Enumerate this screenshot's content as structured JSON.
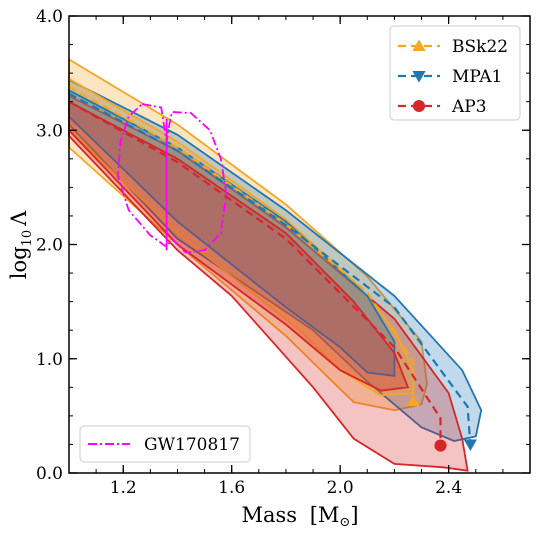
{
  "chart_data": {
    "type": "area",
    "title": "",
    "xlabel": "Mass",
    "xlabel_unit": "[M",
    "xlabel_unit_symbol": "⊙",
    "xlabel_unit_close": "]",
    "ylabel_main": "log",
    "ylabel_sub": "10",
    "ylabel_sym": "Λ",
    "xlim": [
      1.0,
      2.7
    ],
    "ylim": [
      0.0,
      4.0
    ],
    "xticks": [
      1.2,
      1.6,
      2.0,
      2.4
    ],
    "xtick_labels": [
      "1.2",
      "1.6",
      "2.0",
      "2.4"
    ],
    "yticks": [
      0.0,
      1.0,
      2.0,
      3.0,
      4.0
    ],
    "ytick_labels": [
      "0.0",
      "1.0",
      "2.0",
      "3.0",
      "4.0"
    ],
    "legend_upper": {
      "placement": "top-right",
      "entries": [
        "BSk22",
        "MPA1",
        "AP3"
      ]
    },
    "legend_lower": {
      "placement": "bottom-left",
      "entries": [
        "GW170817"
      ]
    },
    "series": [
      {
        "name": "BSk22",
        "color": "#f5a623",
        "marker": "triangle-up",
        "center_line": [
          [
            1.0,
            3.38
          ],
          [
            1.4,
            2.85
          ],
          [
            1.8,
            2.18
          ],
          [
            2.1,
            1.58
          ],
          [
            2.27,
            0.98
          ]
        ],
        "endpoint": [
          2.27,
          0.63
        ],
        "outer_region": [
          [
            1.0,
            3.62
          ],
          [
            1.4,
            3.05
          ],
          [
            1.8,
            2.35
          ],
          [
            2.1,
            1.72
          ],
          [
            2.3,
            1.15
          ],
          [
            2.32,
            0.78
          ],
          [
            2.3,
            0.6
          ],
          [
            2.2,
            0.55
          ],
          [
            2.05,
            0.62
          ],
          [
            1.95,
            0.85
          ],
          [
            1.8,
            1.2
          ],
          [
            1.4,
            2.0
          ],
          [
            1.0,
            2.85
          ]
        ],
        "inner_region": [
          [
            1.0,
            3.45
          ],
          [
            1.4,
            2.9
          ],
          [
            1.8,
            2.22
          ],
          [
            2.05,
            1.68
          ],
          [
            2.2,
            1.25
          ],
          [
            2.27,
            0.9
          ],
          [
            2.27,
            0.7
          ],
          [
            2.15,
            0.68
          ],
          [
            2.0,
            0.9
          ],
          [
            1.85,
            1.25
          ],
          [
            1.4,
            2.1
          ],
          [
            1.0,
            3.0
          ]
        ]
      },
      {
        "name": "MPA1",
        "color": "#1f77b4",
        "marker": "triangle-down",
        "center_line": [
          [
            1.0,
            3.32
          ],
          [
            1.4,
            2.82
          ],
          [
            1.8,
            2.17
          ],
          [
            2.2,
            1.45
          ],
          [
            2.47,
            0.58
          ]
        ],
        "endpoint": [
          2.48,
          0.25
        ],
        "outer_region": [
          [
            1.0,
            3.44
          ],
          [
            1.4,
            2.96
          ],
          [
            1.8,
            2.3
          ],
          [
            2.2,
            1.55
          ],
          [
            2.45,
            0.9
          ],
          [
            2.52,
            0.55
          ],
          [
            2.5,
            0.32
          ],
          [
            2.42,
            0.28
          ],
          [
            2.3,
            0.4
          ],
          [
            2.1,
            0.8
          ],
          [
            1.9,
            1.25
          ],
          [
            1.4,
            2.05
          ],
          [
            1.0,
            3.05
          ]
        ],
        "inner_region": [
          [
            1.0,
            3.35
          ],
          [
            1.4,
            2.85
          ],
          [
            1.8,
            2.2
          ],
          [
            2.1,
            1.55
          ],
          [
            2.2,
            1.15
          ],
          [
            2.2,
            0.85
          ],
          [
            2.1,
            0.88
          ],
          [
            2.0,
            1.1
          ],
          [
            1.8,
            1.45
          ],
          [
            1.4,
            2.2
          ],
          [
            1.0,
            3.12
          ]
        ]
      },
      {
        "name": "AP3",
        "color": "#d62728",
        "marker": "circle",
        "center_line": [
          [
            1.0,
            3.25
          ],
          [
            1.4,
            2.72
          ],
          [
            1.8,
            2.05
          ],
          [
            2.2,
            1.1
          ],
          [
            2.37,
            0.48
          ]
        ],
        "endpoint": [
          2.37,
          0.24
        ],
        "outer_region": [
          [
            1.0,
            3.3
          ],
          [
            1.4,
            2.82
          ],
          [
            1.8,
            2.15
          ],
          [
            2.2,
            1.35
          ],
          [
            2.4,
            0.7
          ],
          [
            2.45,
            0.3
          ],
          [
            2.47,
            0.02
          ],
          [
            2.38,
            0.05
          ],
          [
            2.2,
            0.08
          ],
          [
            2.05,
            0.3
          ],
          [
            1.9,
            0.75
          ],
          [
            1.6,
            1.55
          ],
          [
            1.4,
            1.95
          ],
          [
            1.0,
            2.95
          ]
        ],
        "inner_region": [
          [
            1.0,
            3.25
          ],
          [
            1.4,
            2.75
          ],
          [
            1.8,
            2.1
          ],
          [
            2.05,
            1.5
          ],
          [
            2.2,
            1.05
          ],
          [
            2.25,
            0.75
          ],
          [
            2.15,
            0.72
          ],
          [
            2.0,
            0.9
          ],
          [
            1.8,
            1.3
          ],
          [
            1.4,
            2.0
          ],
          [
            1.0,
            3.0
          ]
        ]
      }
    ],
    "gw170817": {
      "name": "GW170817",
      "color": "#ff00ff",
      "outer_contour": [
        [
          1.27,
          3.23
        ],
        [
          1.34,
          3.2
        ],
        [
          1.36,
          2.9
        ],
        [
          1.37,
          3.05
        ],
        [
          1.38,
          3.16
        ],
        [
          1.45,
          3.15
        ],
        [
          1.52,
          3.0
        ],
        [
          1.56,
          2.75
        ],
        [
          1.58,
          2.45
        ],
        [
          1.56,
          2.1
        ],
        [
          1.5,
          1.95
        ],
        [
          1.43,
          1.93
        ],
        [
          1.38,
          2.05
        ],
        [
          1.36,
          1.98
        ],
        [
          1.3,
          2.08
        ],
        [
          1.22,
          2.3
        ],
        [
          1.18,
          2.6
        ],
        [
          1.19,
          2.9
        ],
        [
          1.22,
          3.12
        ]
      ],
      "symmetry_line": [
        [
          1.36,
          3.1
        ],
        [
          1.36,
          1.95
        ]
      ]
    }
  }
}
